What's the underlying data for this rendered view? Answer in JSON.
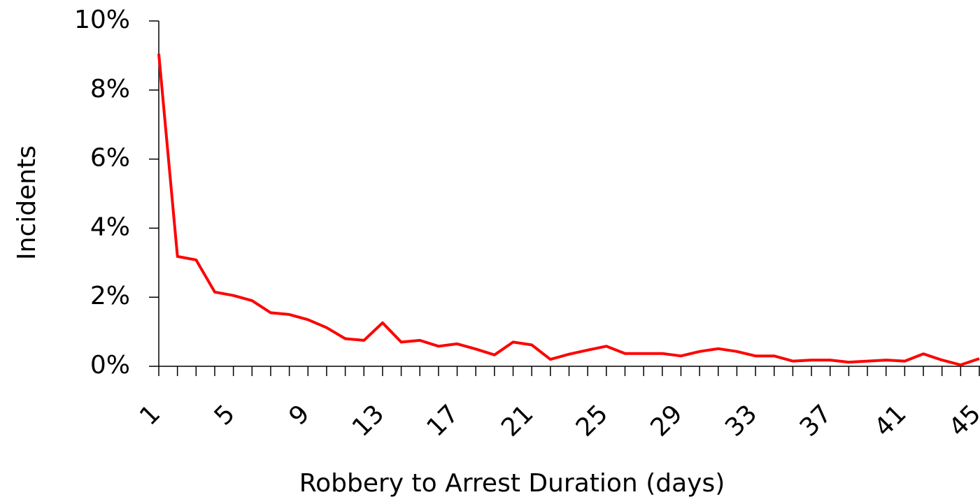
{
  "chart_data": {
    "type": "line",
    "x_label": "Robbery to Arrest Duration (days)",
    "y_label": "Incidents",
    "categories": [
      "1",
      null,
      null,
      null,
      "5",
      null,
      null,
      null,
      "9",
      null,
      null,
      null,
      "13",
      null,
      null,
      null,
      "17",
      null,
      null,
      null,
      "21",
      null,
      null,
      null,
      "25",
      null,
      null,
      null,
      "29",
      null,
      null,
      null,
      "33",
      null,
      null,
      null,
      "37",
      null,
      null,
      null,
      "41",
      null,
      null,
      null,
      "45"
    ],
    "values": [
      9.05,
      3.18,
      3.08,
      2.15,
      2.05,
      1.9,
      1.55,
      1.5,
      1.35,
      1.12,
      0.8,
      0.75,
      1.26,
      0.7,
      0.75,
      0.58,
      0.65,
      0.5,
      0.33,
      0.7,
      0.62,
      0.2,
      0.35,
      0.47,
      0.58,
      0.37,
      0.37,
      0.37,
      0.3,
      0.43,
      0.51,
      0.43,
      0.3,
      0.3,
      0.15,
      0.18,
      0.18,
      0.12,
      0.15,
      0.18,
      0.15,
      0.36,
      0.18,
      0.04,
      0.22
    ],
    "color": "#ff0000",
    "ylim": [
      0,
      10
    ],
    "yticks": [
      {
        "value": 0,
        "label": "0%"
      },
      {
        "value": 2,
        "label": "2%"
      },
      {
        "value": 4,
        "label": "4%"
      },
      {
        "value": 6,
        "label": "6%"
      },
      {
        "value": 8,
        "label": "8%"
      },
      {
        "value": 10,
        "label": "10%"
      }
    ],
    "grid": false
  }
}
